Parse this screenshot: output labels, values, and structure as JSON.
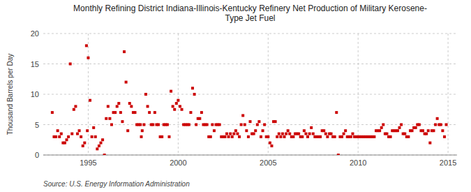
{
  "chart_data": {
    "type": "scatter",
    "title": "Monthly Refining District Indiana-Illinois-Kentucky Refinery Net Production of Military Kerosene-\nType Jet Fuel",
    "ylabel": "Thousand Barrels per Day",
    "source": "Source: U.S. Energy Information Administration",
    "color": "#cc0000",
    "marker": "square",
    "grid": true,
    "xlim": [
      1992.5,
      2015.5
    ],
    "ylim": [
      0,
      20
    ],
    "xticks": [
      1995,
      2000,
      2005,
      2010,
      2015
    ],
    "yticks": [
      0,
      5,
      10,
      15,
      20
    ],
    "x": [
      1993.0,
      1993.1,
      1993.2,
      1993.3,
      1993.4,
      1993.5,
      1993.6,
      1993.7,
      1993.8,
      1993.9,
      1994.0,
      1994.1,
      1994.2,
      1994.3,
      1994.4,
      1994.5,
      1994.6,
      1994.7,
      1994.8,
      1994.9,
      1994.95,
      1995.0,
      1995.1,
      1995.2,
      1995.3,
      1995.4,
      1995.5,
      1995.6,
      1995.7,
      1995.8,
      1995.9,
      1996.0,
      1996.1,
      1996.2,
      1996.3,
      1996.4,
      1996.5,
      1996.6,
      1996.7,
      1996.8,
      1996.9,
      1997.0,
      1997.1,
      1997.2,
      1997.3,
      1997.4,
      1997.5,
      1997.6,
      1997.7,
      1997.8,
      1997.9,
      1997.95,
      1998.0,
      1998.1,
      1998.2,
      1998.3,
      1998.4,
      1998.5,
      1998.6,
      1998.7,
      1998.8,
      1998.9,
      1999.0,
      1999.1,
      1999.2,
      1999.3,
      1999.4,
      1999.5,
      1999.6,
      1999.7,
      1999.8,
      1999.9,
      2000.0,
      2000.1,
      2000.2,
      2000.3,
      2000.4,
      2000.5,
      2000.6,
      2000.7,
      2000.8,
      2000.9,
      2001.0,
      2001.1,
      2001.2,
      2001.3,
      2001.4,
      2001.5,
      2001.6,
      2001.7,
      2001.8,
      2001.9,
      2002.0,
      2002.1,
      2002.2,
      2002.3,
      2002.4,
      2002.5,
      2002.6,
      2002.7,
      2002.8,
      2002.9,
      2003.0,
      2003.1,
      2003.2,
      2003.3,
      2003.4,
      2003.5,
      2003.6,
      2003.7,
      2003.8,
      2003.9,
      2004.0,
      2004.1,
      2004.2,
      2004.3,
      2004.4,
      2004.5,
      2004.6,
      2004.7,
      2004.8,
      2004.9,
      2005.0,
      2005.1,
      2005.2,
      2005.3,
      2005.4,
      2005.5,
      2005.6,
      2005.7,
      2005.8,
      2005.9,
      2006.0,
      2006.1,
      2006.2,
      2006.3,
      2006.4,
      2006.5,
      2006.6,
      2006.7,
      2006.8,
      2006.9,
      2007.0,
      2007.1,
      2007.2,
      2007.3,
      2007.4,
      2007.5,
      2007.6,
      2007.7,
      2007.8,
      2007.9,
      2008.0,
      2008.1,
      2008.2,
      2008.3,
      2008.4,
      2008.5,
      2008.6,
      2008.7,
      2008.8,
      2008.9,
      2009.0,
      2009.1,
      2009.2,
      2009.3,
      2009.4,
      2009.5,
      2009.6,
      2009.7,
      2009.8,
      2009.9,
      2010.0,
      2010.1,
      2010.2,
      2010.3,
      2010.4,
      2010.5,
      2010.6,
      2010.7,
      2010.8,
      2010.9,
      2011.0,
      2011.1,
      2011.2,
      2011.3,
      2011.4,
      2011.5,
      2011.6,
      2011.7,
      2011.8,
      2011.9,
      2012.0,
      2012.1,
      2012.2,
      2012.3,
      2012.4,
      2012.5,
      2012.6,
      2012.7,
      2012.8,
      2012.9,
      2013.0,
      2013.1,
      2013.2,
      2013.3,
      2013.4,
      2013.5,
      2013.6,
      2013.7,
      2013.8,
      2013.9,
      2014.0,
      2014.1,
      2014.2,
      2014.3,
      2014.4,
      2014.5,
      2014.6,
      2014.7,
      2014.8,
      2014.9
    ],
    "values": [
      7.0,
      3.0,
      3.0,
      4.0,
      3.0,
      3.5,
      2.0,
      2.0,
      2.5,
      3.0,
      15.0,
      3.5,
      7.5,
      8.0,
      3.5,
      4.0,
      3.0,
      1.5,
      2.0,
      18.0,
      4.0,
      16.0,
      9.0,
      3.0,
      4.5,
      3.0,
      1.0,
      1.5,
      2.0,
      2.5,
      0.0,
      6.0,
      8.0,
      6.0,
      5.0,
      7.0,
      7.0,
      8.0,
      8.5,
      7.0,
      5.5,
      17.0,
      12.0,
      4.0,
      8.5,
      8.0,
      7.0,
      7.0,
      5.0,
      5.0,
      5.0,
      3.0,
      4.0,
      5.0,
      10.0,
      8.0,
      7.0,
      5.0,
      5.0,
      7.0,
      5.0,
      5.0,
      3.0,
      3.0,
      5.0,
      5.0,
      5.0,
      3.0,
      10.5,
      8.0,
      7.5,
      8.5,
      9.0,
      8.0,
      7.5,
      5.0,
      5.0,
      5.0,
      5.0,
      7.0,
      11.0,
      10.0,
      5.0,
      6.0,
      6.0,
      7.0,
      5.0,
      5.0,
      5.0,
      3.0,
      3.0,
      5.0,
      4.0,
      5.0,
      5.0,
      5.0,
      3.0,
      3.0,
      3.0,
      3.5,
      3.0,
      3.5,
      3.0,
      3.5,
      4.0,
      3.5,
      3.0,
      5.0,
      6.5,
      5.0,
      4.0,
      3.0,
      5.5,
      3.5,
      3.5,
      4.0,
      5.0,
      5.5,
      3.0,
      4.0,
      5.0,
      3.0,
      3.0,
      2.0,
      1.5,
      5.5,
      5.5,
      3.0,
      3.5,
      3.0,
      3.5,
      3.0,
      3.5,
      4.0,
      3.5,
      3.0,
      3.0,
      3.5,
      3.5,
      3.5,
      3.0,
      3.0,
      4.0,
      3.5,
      3.0,
      3.5,
      4.5,
      3.5,
      3.0,
      3.0,
      3.0,
      3.0,
      4.0,
      4.0,
      3.5,
      3.0,
      3.5,
      3.5,
      3.0,
      3.0,
      7.0,
      0.0,
      3.0,
      3.0,
      3.5,
      4.0,
      3.0,
      3.0,
      3.0,
      3.5,
      3.0,
      3.0,
      3.0,
      3.0,
      3.0,
      3.0,
      3.0,
      3.0,
      3.0,
      3.0,
      3.0,
      3.0,
      4.0,
      4.0,
      4.0,
      4.5,
      5.0,
      3.5,
      3.5,
      3.0,
      3.0,
      4.0,
      4.0,
      4.0,
      4.0,
      4.5,
      5.0,
      3.5,
      3.5,
      3.0,
      3.0,
      4.0,
      4.0,
      4.5,
      4.5,
      5.0,
      5.0,
      4.0,
      4.0,
      3.5,
      3.5,
      4.0,
      2.0,
      4.0,
      4.0,
      5.0,
      6.0,
      5.0,
      5.0,
      4.0,
      3.0,
      5.0
    ]
  }
}
